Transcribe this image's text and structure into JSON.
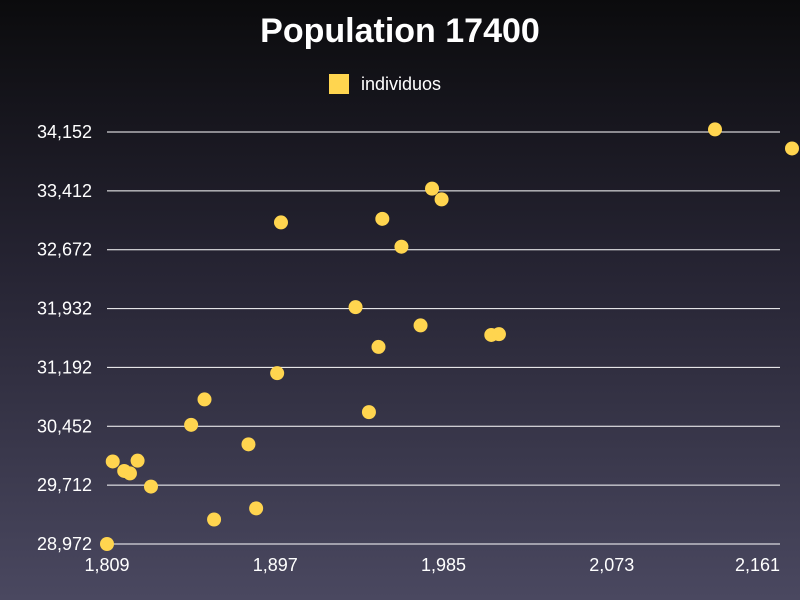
{
  "chart_data": {
    "type": "scatter",
    "title": "Population 17400",
    "xlabel": "",
    "ylabel": "",
    "xlim": [
      1809,
      2161
    ],
    "ylim": [
      28972,
      34152
    ],
    "xticks": [
      "1,809",
      "1,897",
      "1,985",
      "2,073",
      "2,161"
    ],
    "xtick_values": [
      1809,
      1897,
      1985,
      2073,
      2161
    ],
    "yticks": [
      "34,152",
      "33,412",
      "32,672",
      "31,932",
      "31,192",
      "30,452",
      "29,712",
      "28,972"
    ],
    "ytick_values": [
      34152,
      33412,
      32672,
      31932,
      31192,
      30452,
      29712,
      28972
    ],
    "grid": "horizontal",
    "legend_position": "top-center",
    "colors": {
      "point": "#ffd54f",
      "grid": "#ffffff"
    },
    "series": [
      {
        "name": "individuos",
        "points": [
          [
            2127,
            34185
          ],
          [
            2174,
            33945
          ],
          [
            1979,
            33440
          ],
          [
            1984,
            33305
          ],
          [
            1900,
            33015
          ],
          [
            1953,
            33060
          ],
          [
            1963,
            32710
          ],
          [
            1939,
            31950
          ],
          [
            1973,
            31720
          ],
          [
            1951,
            31450
          ],
          [
            2010,
            31600
          ],
          [
            2014,
            31610
          ],
          [
            1898,
            31120
          ],
          [
            1946,
            30630
          ],
          [
            1860,
            30790
          ],
          [
            1853,
            30470
          ],
          [
            1883,
            30225
          ],
          [
            1812,
            30010
          ],
          [
            1818,
            29890
          ],
          [
            1821,
            29860
          ],
          [
            1825,
            30020
          ],
          [
            1832,
            29694
          ],
          [
            1865,
            29280
          ],
          [
            1887,
            29420
          ],
          [
            1809,
            28972
          ]
        ]
      }
    ]
  }
}
